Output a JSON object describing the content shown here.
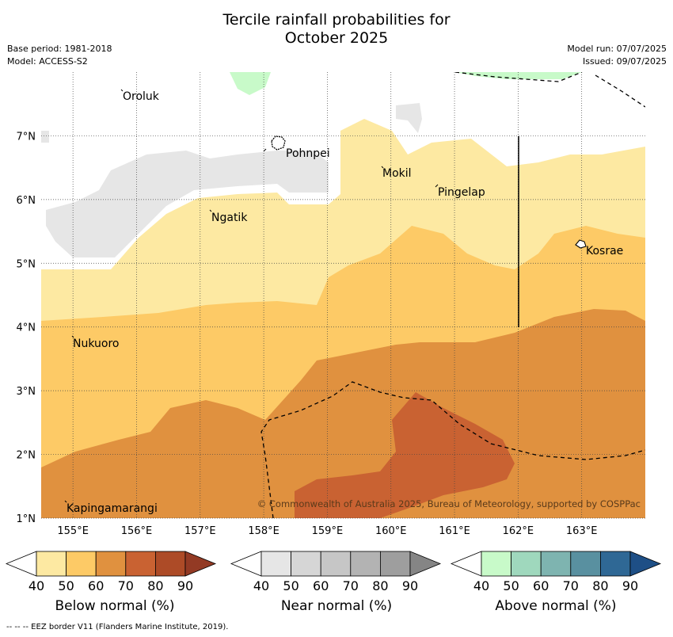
{
  "title_line1": "Tercile rainfall probabilities for",
  "title_line2": "October 2025",
  "meta": {
    "base_period": "Base period: 1981-2018",
    "model": "Model: ACCESS-S2",
    "model_run": "Model run: 07/07/2025",
    "issued": "Issued: 09/07/2025"
  },
  "map": {
    "lon_range": [
      154.5,
      164.0
    ],
    "lat_range": [
      1.0,
      8.0
    ],
    "lon_ticks": [
      "155°E",
      "156°E",
      "157°E",
      "158°E",
      "159°E",
      "160°E",
      "161°E",
      "162°E",
      "163°E"
    ],
    "lat_ticks": [
      "1°N",
      "2°N",
      "3°N",
      "4°N",
      "5°N",
      "6°N",
      "7°N"
    ],
    "places": [
      "Oroluk",
      "Pohnpei",
      "Mokil",
      "Pingelap",
      "Ngatik",
      "Kosrae",
      "Nukuoro",
      "Kapingamarangi"
    ],
    "copyright": "© Commonwealth of Australia 2025, Bureau of Meteorology, supported by COSPPac"
  },
  "colorbars": [
    {
      "label": "Below normal (%)",
      "ticks": [
        "40",
        "50",
        "60",
        "70",
        "80",
        "90"
      ],
      "colors": [
        "#ffffff",
        "#fde9a2",
        "#fdca66",
        "#e0913f",
        "#c96232",
        "#ad4b27",
        "#933a24"
      ]
    },
    {
      "label": "Near normal (%)",
      "ticks": [
        "40",
        "50",
        "60",
        "70",
        "80",
        "90"
      ],
      "colors": [
        "#ffffff",
        "#e6e6e6",
        "#d6d6d6",
        "#c6c6c6",
        "#b3b3b3",
        "#9e9e9e",
        "#858585"
      ]
    },
    {
      "label": "Above normal (%)",
      "ticks": [
        "40",
        "50",
        "60",
        "70",
        "80",
        "90"
      ],
      "colors": [
        "#ffffff",
        "#c8fac9",
        "#9fd8bd",
        "#7eb4b0",
        "#5990a0",
        "#2f6895",
        "#1e4f86"
      ]
    }
  ],
  "footnote": "-- -- -- EEZ border V11 (Flanders Marine Institute, 2019)."
}
